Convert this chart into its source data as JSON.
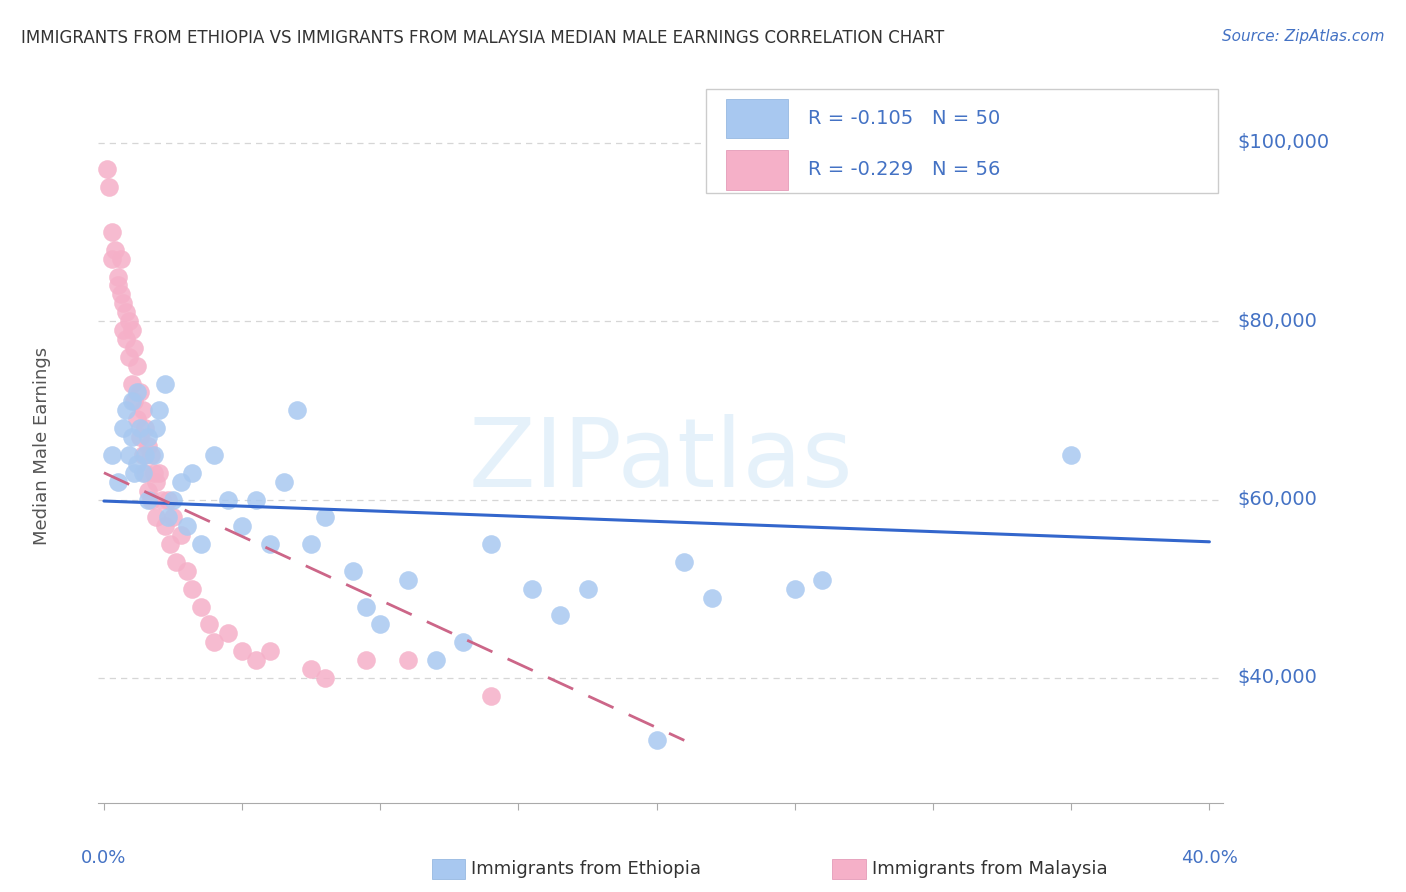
{
  "title": "IMMIGRANTS FROM ETHIOPIA VS IMMIGRANTS FROM MALAYSIA MEDIAN MALE EARNINGS CORRELATION CHART",
  "source": "Source: ZipAtlas.com",
  "ylabel": "Median Male Earnings",
  "yticks": [
    40000,
    60000,
    80000,
    100000
  ],
  "ytick_labels": [
    "$40,000",
    "$60,000",
    "$80,000",
    "$100,000"
  ],
  "ylim": [
    26000,
    106000
  ],
  "xlim": [
    -0.002,
    0.405
  ],
  "xticks": [
    0.0,
    0.05,
    0.1,
    0.15,
    0.2,
    0.25,
    0.3,
    0.35,
    0.4
  ],
  "watermark": "ZIPatlas",
  "ethiopia_color": "#a8c8f0",
  "malaysia_color": "#f5b0c8",
  "ethiopia_R": -0.105,
  "ethiopia_N": 50,
  "malaysia_R": -0.229,
  "malaysia_N": 56,
  "background_color": "#ffffff",
  "grid_color": "#cccccc",
  "axis_label_color": "#4472c4",
  "title_color": "#333333",
  "regression_eth_color": "#3366cc",
  "regression_mal_color": "#cc6688",
  "ethiopia_scatter_x": [
    0.003,
    0.005,
    0.007,
    0.008,
    0.009,
    0.01,
    0.01,
    0.011,
    0.012,
    0.012,
    0.013,
    0.014,
    0.015,
    0.016,
    0.016,
    0.018,
    0.019,
    0.02,
    0.022,
    0.023,
    0.025,
    0.028,
    0.03,
    0.032,
    0.035,
    0.04,
    0.045,
    0.05,
    0.055,
    0.06,
    0.065,
    0.07,
    0.075,
    0.08,
    0.09,
    0.095,
    0.1,
    0.11,
    0.12,
    0.13,
    0.14,
    0.155,
    0.165,
    0.175,
    0.2,
    0.21,
    0.22,
    0.25,
    0.26,
    0.35
  ],
  "ethiopia_scatter_y": [
    65000,
    62000,
    68000,
    70000,
    65000,
    71000,
    67000,
    63000,
    72000,
    64000,
    68000,
    63000,
    65000,
    60000,
    67000,
    65000,
    68000,
    70000,
    73000,
    58000,
    60000,
    62000,
    57000,
    63000,
    55000,
    65000,
    60000,
    57000,
    60000,
    55000,
    62000,
    70000,
    55000,
    58000,
    52000,
    48000,
    46000,
    51000,
    42000,
    44000,
    55000,
    50000,
    47000,
    50000,
    33000,
    53000,
    49000,
    50000,
    51000,
    65000
  ],
  "malaysia_scatter_x": [
    0.001,
    0.002,
    0.003,
    0.003,
    0.004,
    0.005,
    0.005,
    0.006,
    0.006,
    0.007,
    0.007,
    0.008,
    0.008,
    0.009,
    0.009,
    0.01,
    0.01,
    0.011,
    0.011,
    0.012,
    0.012,
    0.013,
    0.013,
    0.014,
    0.014,
    0.015,
    0.015,
    0.016,
    0.016,
    0.017,
    0.017,
    0.018,
    0.019,
    0.019,
    0.02,
    0.021,
    0.022,
    0.023,
    0.024,
    0.025,
    0.026,
    0.028,
    0.03,
    0.032,
    0.035,
    0.038,
    0.04,
    0.045,
    0.05,
    0.055,
    0.06,
    0.075,
    0.08,
    0.095,
    0.11,
    0.14
  ],
  "malaysia_scatter_y": [
    97000,
    95000,
    90000,
    87000,
    88000,
    85000,
    84000,
    87000,
    83000,
    82000,
    79000,
    81000,
    78000,
    80000,
    76000,
    79000,
    73000,
    77000,
    71000,
    75000,
    69000,
    72000,
    67000,
    70000,
    65000,
    68000,
    63000,
    66000,
    61000,
    65000,
    60000,
    63000,
    62000,
    58000,
    63000,
    60000,
    57000,
    60000,
    55000,
    58000,
    53000,
    56000,
    52000,
    50000,
    48000,
    46000,
    44000,
    45000,
    43000,
    42000,
    43000,
    41000,
    40000,
    42000,
    42000,
    38000
  ]
}
